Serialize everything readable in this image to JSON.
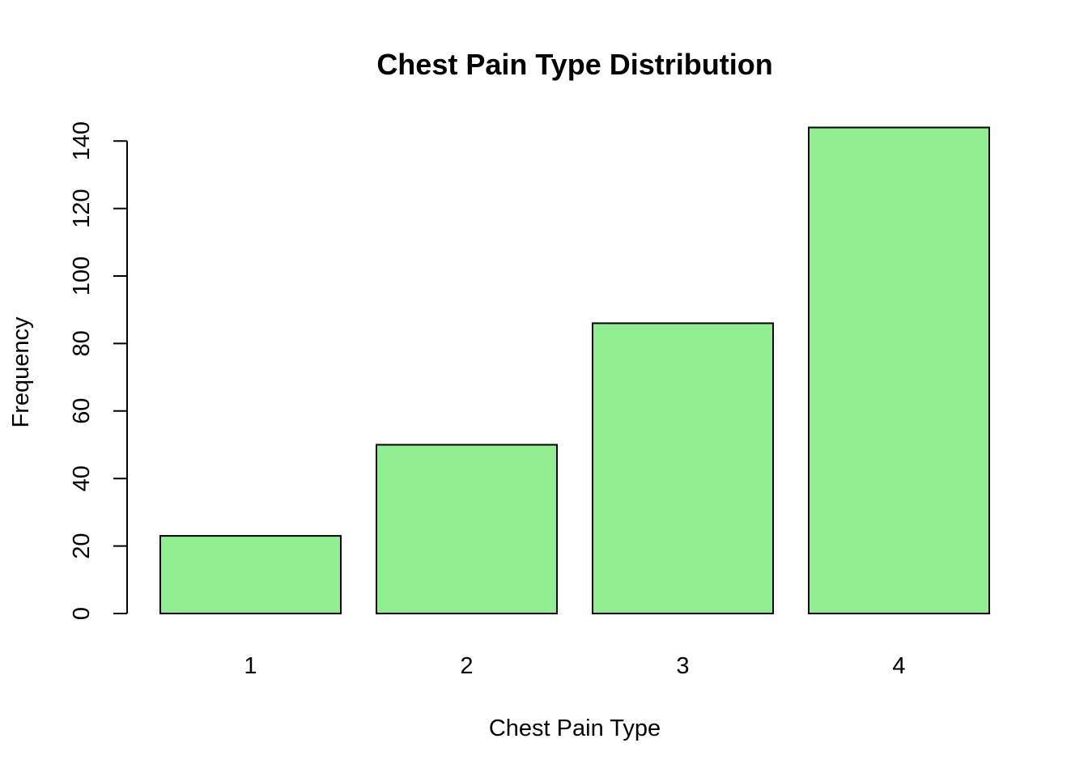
{
  "chart_data": {
    "type": "bar",
    "title": "Chest Pain Type Distribution",
    "xlabel": "Chest Pain Type",
    "ylabel": "Frequency",
    "categories": [
      "1",
      "2",
      "3",
      "4"
    ],
    "values": [
      23,
      50,
      86,
      144
    ],
    "ylim": [
      0,
      140
    ],
    "yticks": [
      "0",
      "20",
      "40",
      "60",
      "80",
      "100",
      "120",
      "140"
    ],
    "bar_color": "#90EE90",
    "grid": false,
    "legend": "none"
  }
}
